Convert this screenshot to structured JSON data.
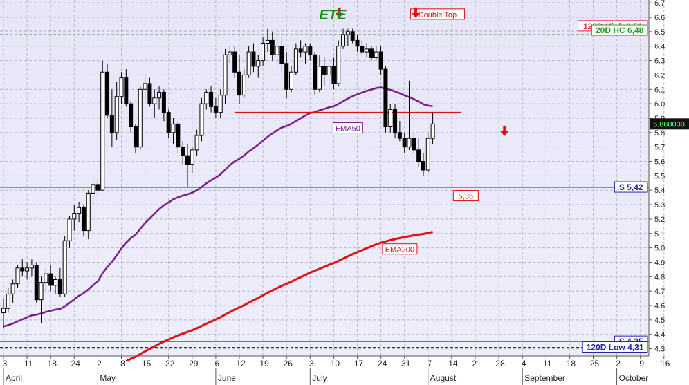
{
  "chart_data": {
    "type": "candlestick",
    "title": "ETE",
    "y_axis": {
      "min": 4.25,
      "max": 6.72,
      "ticks": [
        4.3,
        4.4,
        4.5,
        4.6,
        4.7,
        4.8,
        4.9,
        5.0,
        5.1,
        5.2,
        5.3,
        5.4,
        5.5,
        5.6,
        5.7,
        5.8,
        5.9,
        6.0,
        6.1,
        6.2,
        6.3,
        6.4,
        6.5,
        6.6,
        6.7
      ],
      "tick_labels": [
        "4.3",
        "4.4",
        "4.5",
        "4.6",
        "4.7",
        "4.8",
        "4.9",
        "5.0",
        "5.1",
        "5.2",
        "5.3",
        "5.4",
        "5.5",
        "5.6",
        "5.7",
        "5.8",
        "5.9",
        "6.0",
        "6.1",
        "6.2",
        "6.3",
        "6.4",
        "6.5",
        "6.6",
        "6.7"
      ],
      "last_price_label": "5.860000",
      "last_price": 5.86
    },
    "x_axis": {
      "day_labels": [
        "3",
        "11",
        "18",
        "24",
        "2",
        "8",
        "15",
        "22",
        "29",
        "6",
        "12",
        "19",
        "26",
        "3",
        "10",
        "17",
        "24",
        "31",
        "7",
        "14",
        "21",
        "28",
        "4",
        "11",
        "18",
        "25",
        "2",
        "9",
        "16"
      ],
      "month_labels": [
        {
          "label": "April",
          "day_index": 0
        },
        {
          "label": "May",
          "day_index": 4
        },
        {
          "label": "June",
          "day_index": 9
        },
        {
          "label": "July",
          "day_index": 13
        },
        {
          "label": "August",
          "day_index": 18
        },
        {
          "label": "September",
          "day_index": 22
        },
        {
          "label": "October",
          "day_index": 26
        }
      ]
    },
    "horizontal_lines": [
      {
        "label": "120D High 6,51",
        "value": 6.51,
        "style": "dashed",
        "color": "#e8384a"
      },
      {
        "label": "20D HC 6,48",
        "value": 6.48,
        "style": "dashed",
        "color": "#2a9a2a"
      },
      {
        "label": "S 5,42",
        "value": 5.42,
        "style": "solid",
        "color": "#2222aa"
      },
      {
        "label": "S 4,35",
        "value": 4.35,
        "style": "solid",
        "color": "#2222aa"
      },
      {
        "label": "120D Low 4,31",
        "value": 4.31,
        "style": "dashed",
        "color": "#2222aa"
      }
    ],
    "neckline": {
      "value": 5.94,
      "from_day": 24.5,
      "to_day": 48.5,
      "color": "#e01010"
    },
    "annotations": [
      {
        "text": "Double Top",
        "day": 46,
        "value": 6.62
      },
      {
        "text": "EMA50",
        "day": 36.5,
        "value": 5.83
      },
      {
        "text": "EMA200",
        "day": 42,
        "value": 4.99
      },
      {
        "text": "5,35",
        "day": 49,
        "value": 5.36
      }
    ],
    "arrows": [
      {
        "day": 35.6,
        "value": 6.62,
        "direction": "down"
      },
      {
        "day": 43.7,
        "value": 6.62,
        "direction": "down"
      },
      {
        "day": 53.1,
        "value": 5.8,
        "direction": "down"
      }
    ],
    "candles": [
      [
        4.55,
        4.65,
        4.44,
        4.58
      ],
      [
        4.58,
        4.72,
        4.55,
        4.68
      ],
      [
        4.68,
        4.78,
        4.62,
        4.75
      ],
      [
        4.75,
        4.88,
        4.72,
        4.86
      ],
      [
        4.86,
        4.92,
        4.8,
        4.84
      ],
      [
        4.84,
        4.9,
        4.78,
        4.86
      ],
      [
        4.86,
        4.92,
        4.8,
        4.88
      ],
      [
        4.88,
        4.9,
        4.62,
        4.64
      ],
      [
        4.64,
        4.8,
        4.48,
        4.76
      ],
      [
        4.76,
        4.86,
        4.7,
        4.82
      ],
      [
        4.82,
        4.88,
        4.7,
        4.74
      ],
      [
        4.74,
        4.8,
        4.68,
        4.78
      ],
      [
        4.78,
        4.86,
        4.66,
        4.68
      ],
      [
        4.68,
        5.08,
        4.66,
        5.05
      ],
      [
        5.05,
        5.22,
        5.0,
        5.2
      ],
      [
        5.2,
        5.3,
        5.12,
        5.24
      ],
      [
        5.24,
        5.32,
        5.18,
        5.28
      ],
      [
        5.28,
        5.3,
        5.08,
        5.12
      ],
      [
        5.12,
        5.4,
        5.06,
        5.38
      ],
      [
        5.38,
        5.48,
        5.3,
        5.44
      ],
      [
        5.44,
        5.48,
        5.36,
        5.4
      ],
      [
        5.4,
        6.3,
        5.4,
        6.22
      ],
      [
        6.22,
        6.28,
        5.9,
        5.92
      ],
      [
        5.92,
        6.1,
        5.7,
        5.8
      ],
      [
        5.8,
        6.15,
        5.75,
        6.05
      ],
      [
        6.05,
        6.22,
        6.0,
        6.18
      ],
      [
        6.18,
        6.24,
        5.98,
        6.0
      ],
      [
        6.0,
        6.02,
        5.8,
        5.84
      ],
      [
        5.84,
        5.86,
        5.66,
        5.7
      ],
      [
        5.7,
        6.12,
        5.68,
        6.1
      ],
      [
        6.1,
        6.2,
        6.02,
        6.14
      ],
      [
        6.14,
        6.18,
        5.98,
        6.0
      ],
      [
        6.0,
        6.1,
        5.9,
        6.04
      ],
      [
        6.04,
        6.12,
        5.96,
        6.08
      ],
      [
        6.08,
        6.1,
        5.88,
        5.94
      ],
      [
        5.94,
        5.96,
        5.76,
        5.8
      ],
      [
        5.8,
        5.9,
        5.72,
        5.86
      ],
      [
        5.86,
        5.88,
        5.66,
        5.7
      ],
      [
        5.7,
        5.74,
        5.58,
        5.64
      ],
      [
        5.64,
        5.72,
        5.42,
        5.58
      ],
      [
        5.58,
        5.7,
        5.52,
        5.68
      ],
      [
        5.68,
        5.82,
        5.64,
        5.78
      ],
      [
        5.78,
        6.04,
        5.74,
        6.0
      ],
      [
        6.0,
        6.1,
        5.96,
        6.08
      ],
      [
        6.08,
        6.12,
        5.94,
        5.98
      ],
      [
        5.98,
        6.04,
        5.9,
        5.94
      ],
      [
        5.94,
        6.1,
        5.9,
        6.06
      ],
      [
        6.06,
        6.38,
        6.0,
        6.34
      ],
      [
        6.34,
        6.4,
        6.28,
        6.36
      ],
      [
        6.36,
        6.4,
        6.18,
        6.22
      ],
      [
        6.22,
        6.34,
        6.0,
        6.06
      ],
      [
        6.06,
        6.24,
        6.04,
        6.2
      ],
      [
        6.2,
        6.4,
        6.18,
        6.36
      ],
      [
        6.36,
        6.42,
        6.22,
        6.26
      ],
      [
        6.26,
        6.34,
        6.18,
        6.3
      ],
      [
        6.3,
        6.46,
        6.26,
        6.42
      ],
      [
        6.42,
        6.52,
        6.36,
        6.44
      ],
      [
        6.44,
        6.5,
        6.3,
        6.34
      ],
      [
        6.34,
        6.46,
        6.26,
        6.4
      ],
      [
        6.4,
        6.46,
        6.22,
        6.28
      ],
      [
        6.28,
        6.36,
        6.04,
        6.1
      ],
      [
        6.1,
        6.26,
        6.08,
        6.22
      ],
      [
        6.22,
        6.42,
        6.2,
        6.38
      ],
      [
        6.38,
        6.44,
        6.32,
        6.36
      ],
      [
        6.36,
        6.42,
        6.28,
        6.4
      ],
      [
        6.4,
        6.42,
        6.3,
        6.34
      ],
      [
        6.34,
        6.36,
        6.06,
        6.1
      ],
      [
        6.1,
        6.34,
        6.08,
        6.26
      ],
      [
        6.26,
        6.32,
        6.12,
        6.2
      ],
      [
        6.2,
        6.3,
        6.1,
        6.26
      ],
      [
        6.26,
        6.32,
        6.1,
        6.14
      ],
      [
        6.14,
        6.44,
        6.12,
        6.4
      ],
      [
        6.4,
        6.52,
        6.38,
        6.48
      ],
      [
        6.48,
        6.52,
        6.4,
        6.5
      ],
      [
        6.5,
        6.52,
        6.42,
        6.44
      ],
      [
        6.44,
        6.48,
        6.36,
        6.4
      ],
      [
        6.4,
        6.44,
        6.34,
        6.36
      ],
      [
        6.36,
        6.42,
        6.32,
        6.38
      ],
      [
        6.38,
        6.4,
        6.3,
        6.32
      ],
      [
        6.32,
        6.4,
        6.3,
        6.36
      ],
      [
        6.36,
        6.4,
        6.2,
        6.24
      ],
      [
        6.24,
        6.26,
        5.8,
        5.84
      ],
      [
        5.84,
        6.0,
        5.8,
        5.96
      ],
      [
        5.96,
        6.0,
        5.76,
        5.8
      ],
      [
        5.8,
        5.88,
        5.74,
        5.76
      ],
      [
        5.76,
        5.8,
        5.66,
        5.7
      ],
      [
        5.7,
        6.16,
        5.68,
        5.76
      ],
      [
        5.76,
        5.8,
        5.66,
        5.68
      ],
      [
        5.68,
        5.76,
        5.56,
        5.6
      ],
      [
        5.6,
        5.66,
        5.5,
        5.54
      ],
      [
        5.54,
        5.8,
        5.52,
        5.76
      ],
      [
        5.76,
        5.94,
        5.72,
        5.86
      ]
    ]
  }
}
